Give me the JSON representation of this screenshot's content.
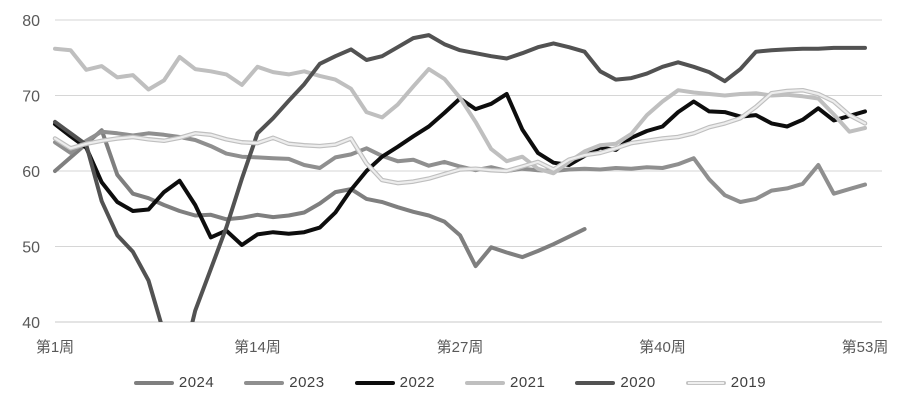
{
  "chart_data": {
    "type": "line",
    "title": "",
    "xlabel": "",
    "ylabel": "",
    "ylim": [
      40,
      80
    ],
    "yticks": [
      40,
      50,
      60,
      70,
      80
    ],
    "x_unit": "week",
    "x_range": [
      1,
      53
    ],
    "xticks": [
      {
        "week": 1,
        "label": "第1周"
      },
      {
        "week": 14,
        "label": "第14周"
      },
      {
        "week": 27,
        "label": "第27周"
      },
      {
        "week": 40,
        "label": "第40周"
      },
      {
        "week": 53,
        "label": "第53周"
      }
    ],
    "grid": "horizontal",
    "grid_color": "#d6d6d6",
    "axis_color": "#c9c9c9",
    "legend_position": "bottom",
    "series": [
      {
        "name": "2024",
        "color": "#7f7f7f",
        "casing": false,
        "values": [
          60.0,
          61.8,
          63.6,
          65.4,
          59.5,
          57.0,
          56.4,
          55.5,
          54.7,
          54.1,
          54.2,
          53.6,
          53.8,
          54.2,
          53.9,
          54.1,
          54.5,
          55.7,
          57.2,
          57.6,
          56.3,
          55.9,
          55.2,
          54.6,
          54.1,
          53.3,
          51.5,
          47.4,
          49.9,
          49.2,
          48.6,
          49.4,
          50.3,
          51.3,
          52.3
        ]
      },
      {
        "name": "2023",
        "color": "#8f8f8f",
        "casing": false,
        "values": [
          63.8,
          62.4,
          64.0,
          65.2,
          65.0,
          64.7,
          65.0,
          64.8,
          64.5,
          64.1,
          63.3,
          62.3,
          61.9,
          61.8,
          61.7,
          61.6,
          60.8,
          60.4,
          61.8,
          62.2,
          63.0,
          62.0,
          61.3,
          61.5,
          60.7,
          61.2,
          60.6,
          60.1,
          60.5,
          60.0,
          60.3,
          60.1,
          60.0,
          60.2,
          60.3,
          60.2,
          60.4,
          60.3,
          60.5,
          60.4,
          60.9,
          61.7,
          58.9,
          56.8,
          55.9,
          56.3,
          57.4,
          57.7,
          58.3,
          60.8,
          57.0,
          57.6,
          58.2
        ]
      },
      {
        "name": "2022",
        "color": "#0d0d0d",
        "casing": false,
        "values": [
          66.2,
          64.6,
          63.1,
          58.5,
          55.9,
          54.7,
          54.9,
          57.2,
          58.7,
          55.5,
          51.2,
          52.1,
          50.2,
          51.6,
          51.9,
          51.7,
          51.9,
          52.5,
          54.5,
          57.5,
          60.0,
          61.9,
          63.2,
          64.6,
          65.9,
          67.7,
          69.6,
          68.2,
          68.9,
          70.2,
          65.5,
          62.4,
          61.1,
          60.8,
          62.0,
          63.1,
          62.8,
          64.4,
          65.3,
          65.9,
          67.8,
          69.2,
          67.9,
          67.8,
          67.2,
          67.4,
          66.3,
          65.9,
          66.8,
          68.3,
          66.7,
          67.3,
          67.9
        ]
      },
      {
        "name": "2021",
        "color": "#bfbfbf",
        "casing": false,
        "values": [
          76.2,
          76.0,
          73.4,
          73.9,
          72.4,
          72.7,
          70.8,
          72.0,
          75.1,
          73.5,
          73.2,
          72.8,
          71.4,
          73.8,
          73.1,
          72.8,
          73.2,
          72.6,
          72.1,
          70.9,
          67.8,
          67.1,
          68.8,
          71.2,
          73.5,
          72.2,
          69.7,
          66.5,
          62.9,
          61.3,
          61.9,
          60.3,
          59.7,
          61.2,
          62.6,
          63.4,
          63.6,
          64.9,
          67.4,
          69.2,
          70.7,
          70.4,
          70.2,
          70.0,
          70.2,
          70.3,
          70.0,
          70.1,
          69.9,
          69.6,
          67.5,
          65.2,
          65.7
        ]
      },
      {
        "name": "2020",
        "color": "#525252",
        "casing": false,
        "values": [
          66.5,
          65.0,
          63.5,
          56.0,
          51.5,
          49.3,
          45.5,
          38.5,
          33.0,
          41.5,
          47.0,
          52.5,
          59.0,
          65.0,
          67.0,
          69.3,
          71.5,
          74.2,
          75.2,
          76.1,
          74.7,
          75.2,
          76.4,
          77.6,
          78.0,
          76.8,
          76.0,
          75.6,
          75.2,
          74.9,
          75.6,
          76.4,
          76.9,
          76.4,
          75.8,
          73.2,
          72.1,
          72.3,
          72.9,
          73.8,
          74.4,
          73.8,
          73.1,
          71.9,
          73.5,
          75.8,
          76.0,
          76.1,
          76.2,
          76.2,
          76.3,
          76.3,
          76.3
        ]
      },
      {
        "name": "2019",
        "color": "#d9d9d9",
        "casing": true,
        "values": [
          64.3,
          63.0,
          63.6,
          64.0,
          64.3,
          64.5,
          64.2,
          64.0,
          64.4,
          65.0,
          64.8,
          64.2,
          63.8,
          63.7,
          64.4,
          63.6,
          63.4,
          63.3,
          63.5,
          64.3,
          61.0,
          58.8,
          58.4,
          58.6,
          59.0,
          59.6,
          60.2,
          60.3,
          60.1,
          60.0,
          60.6,
          61.2,
          60.2,
          61.5,
          62.1,
          62.4,
          63.0,
          63.7,
          64.0,
          64.3,
          64.5,
          65.0,
          65.8,
          66.3,
          67.0,
          68.5,
          70.3,
          70.6,
          70.7,
          70.2,
          69.2,
          67.4,
          66.3
        ]
      }
    ]
  }
}
